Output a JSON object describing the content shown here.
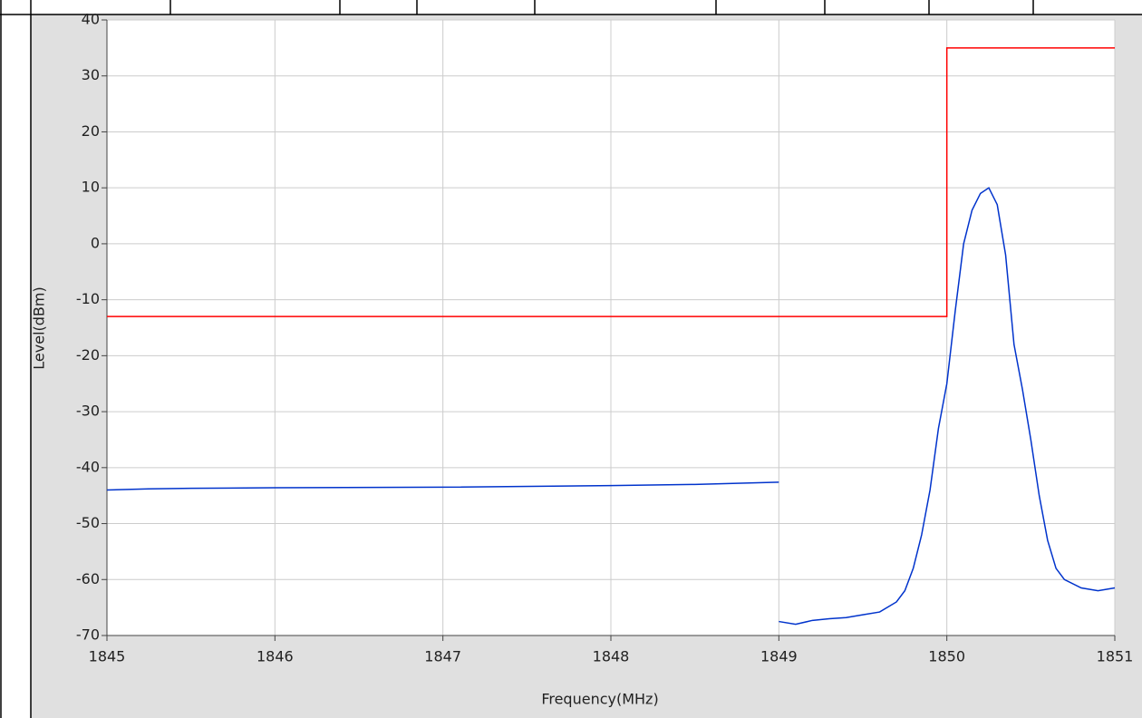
{
  "chart_data": {
    "type": "line",
    "xlabel": "Frequency(MHz)",
    "ylabel": "Level(dBm)",
    "xlim": [
      1845,
      1851
    ],
    "ylim": [
      -70,
      40
    ],
    "xticks": [
      1845,
      1846,
      1847,
      1848,
      1849,
      1850,
      1851
    ],
    "yticks": [
      -70,
      -60,
      -50,
      -40,
      -30,
      -20,
      -10,
      0,
      10,
      20,
      30,
      40
    ],
    "grid": true,
    "series": [
      {
        "color": "#ff0000",
        "x": [
          1845,
          1850,
          1850,
          1851
        ],
        "values": [
          -13,
          -13,
          35,
          35
        ]
      },
      {
        "color": "#0033cc",
        "x": [
          1845,
          1845.25,
          1845.5,
          1846,
          1847,
          1848,
          1848.5,
          1849,
          1849,
          1849,
          1849.1,
          1849.2,
          1849.3,
          1849.4,
          1849.5,
          1849.6,
          1849.7,
          1849.75,
          1849.8,
          1849.85,
          1849.9,
          1849.95,
          1850,
          1850.05,
          1850.1,
          1850.15,
          1850.2,
          1850.25,
          1850.3,
          1850.35,
          1850.4,
          1850.45,
          1850.5,
          1850.55,
          1850.6,
          1850.65,
          1850.7,
          1850.8,
          1850.9,
          1851
        ],
        "values": [
          -44,
          -43.8,
          -43.7,
          -43.6,
          -43.5,
          -43.2,
          -43,
          -42.6,
          null,
          -67.5,
          -68,
          -67.3,
          -67,
          -66.8,
          -66.3,
          -65.8,
          -64,
          -62,
          -58,
          -52,
          -44,
          -33,
          -25,
          -12,
          0,
          6,
          9,
          10,
          7,
          -2,
          -18,
          -26,
          -35,
          -45,
          -53,
          -58,
          -60,
          -61.5,
          -62,
          -61.5
        ]
      }
    ]
  }
}
